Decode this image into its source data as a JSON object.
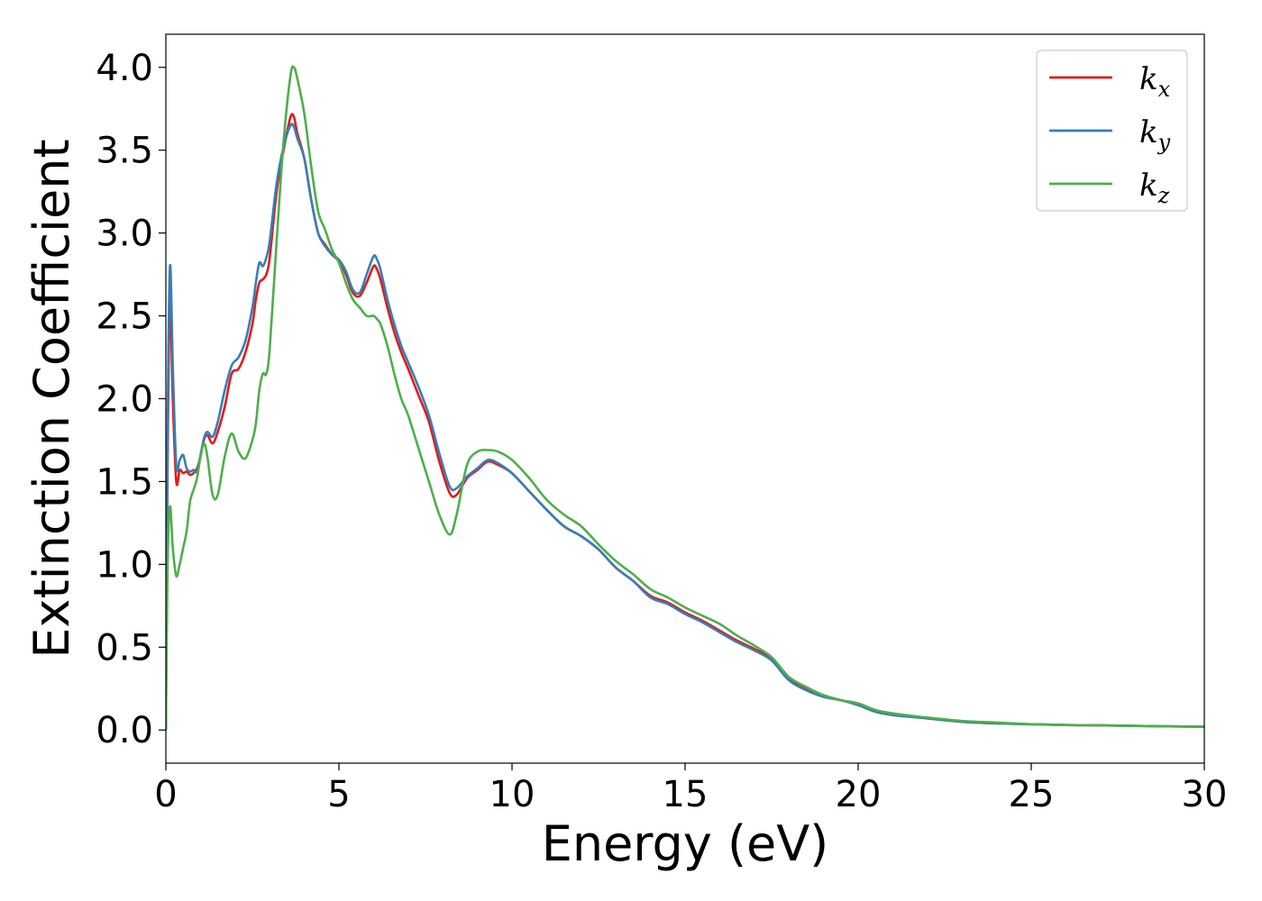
{
  "chart_data": {
    "type": "line",
    "title": "",
    "xlabel": "Energy (eV)",
    "ylabel": "Extinction Coefficient",
    "xlim": [
      0,
      30
    ],
    "ylim": [
      -0.2,
      4.2
    ],
    "xticks": [
      0,
      5,
      10,
      15,
      20,
      25,
      30
    ],
    "xtick_labels": [
      "0",
      "5",
      "10",
      "15",
      "20",
      "25",
      "30"
    ],
    "yticks": [
      0.0,
      0.5,
      1.0,
      1.5,
      2.0,
      2.5,
      3.0,
      3.5,
      4.0
    ],
    "ytick_labels": [
      "0.0",
      "0.5",
      "1.0",
      "1.5",
      "2.0",
      "2.5",
      "3.0",
      "3.5",
      "4.0"
    ],
    "grid": false,
    "legend_position": "top-right",
    "series": [
      {
        "name": "k",
        "subscript": "x",
        "color": "#e41a1c",
        "x": [
          0,
          0.05,
          0.12,
          0.2,
          0.3,
          0.4,
          0.5,
          0.6,
          0.7,
          0.8,
          0.9,
          1.0,
          1.1,
          1.2,
          1.35,
          1.5,
          1.7,
          1.9,
          2.1,
          2.3,
          2.5,
          2.6,
          2.7,
          2.8,
          2.9,
          3.0,
          3.2,
          3.4,
          3.6,
          3.7,
          3.8,
          4.0,
          4.2,
          4.4,
          4.6,
          4.8,
          5.0,
          5.2,
          5.4,
          5.6,
          5.8,
          6.0,
          6.1,
          6.2,
          6.4,
          6.6,
          6.8,
          7.0,
          7.3,
          7.6,
          7.9,
          8.2,
          8.4,
          8.7,
          9.0,
          9.3,
          9.6,
          10.0,
          10.5,
          11.0,
          11.5,
          12.0,
          12.5,
          13.0,
          13.5,
          14.0,
          14.5,
          15.0,
          15.5,
          16.0,
          16.5,
          17.0,
          17.5,
          18.0,
          18.5,
          19.0,
          19.5,
          20.0,
          20.5,
          21.0,
          22.0,
          23.0,
          24.0,
          25.0,
          26.0,
          27.0,
          28.0,
          29.0,
          30.0
        ],
        "y": [
          0.0,
          1.6,
          2.6,
          2.0,
          1.5,
          1.57,
          1.55,
          1.56,
          1.54,
          1.55,
          1.58,
          1.65,
          1.75,
          1.78,
          1.73,
          1.8,
          1.95,
          2.15,
          2.18,
          2.28,
          2.45,
          2.6,
          2.7,
          2.72,
          2.75,
          2.85,
          3.25,
          3.5,
          3.7,
          3.7,
          3.6,
          3.45,
          3.2,
          3.0,
          2.93,
          2.87,
          2.83,
          2.75,
          2.64,
          2.62,
          2.7,
          2.8,
          2.78,
          2.72,
          2.55,
          2.4,
          2.28,
          2.18,
          2.02,
          1.86,
          1.62,
          1.43,
          1.42,
          1.52,
          1.57,
          1.62,
          1.6,
          1.55,
          1.44,
          1.33,
          1.23,
          1.17,
          1.09,
          0.98,
          0.9,
          0.81,
          0.77,
          0.71,
          0.66,
          0.6,
          0.54,
          0.49,
          0.43,
          0.31,
          0.25,
          0.21,
          0.18,
          0.16,
          0.12,
          0.1,
          0.07,
          0.05,
          0.04,
          0.035,
          0.03,
          0.028,
          0.025,
          0.022,
          0.02
        ]
      },
      {
        "name": "k",
        "subscript": "y",
        "color": "#377eb8",
        "x": [
          0,
          0.05,
          0.12,
          0.2,
          0.3,
          0.4,
          0.5,
          0.6,
          0.7,
          0.8,
          0.9,
          1.0,
          1.1,
          1.2,
          1.35,
          1.5,
          1.7,
          1.9,
          2.1,
          2.3,
          2.5,
          2.6,
          2.7,
          2.8,
          2.9,
          3.0,
          3.2,
          3.4,
          3.6,
          3.7,
          3.8,
          4.0,
          4.2,
          4.4,
          4.6,
          4.8,
          5.0,
          5.2,
          5.4,
          5.6,
          5.8,
          6.0,
          6.1,
          6.2,
          6.4,
          6.6,
          6.8,
          7.0,
          7.3,
          7.6,
          7.9,
          8.2,
          8.4,
          8.7,
          9.0,
          9.3,
          9.6,
          10.0,
          10.5,
          11.0,
          11.5,
          12.0,
          12.5,
          13.0,
          13.5,
          14.0,
          14.5,
          15.0,
          15.5,
          16.0,
          16.5,
          17.0,
          17.5,
          18.0,
          18.5,
          19.0,
          19.5,
          20.0,
          20.5,
          21.0,
          22.0,
          23.0,
          24.0,
          25.0,
          26.0,
          27.0,
          28.0,
          29.0,
          30.0
        ],
        "y": [
          0.0,
          1.8,
          2.8,
          2.2,
          1.6,
          1.63,
          1.66,
          1.58,
          1.56,
          1.57,
          1.56,
          1.66,
          1.76,
          1.8,
          1.77,
          1.86,
          2.05,
          2.2,
          2.25,
          2.35,
          2.55,
          2.7,
          2.82,
          2.8,
          2.85,
          2.95,
          3.3,
          3.52,
          3.65,
          3.64,
          3.57,
          3.45,
          3.2,
          3.0,
          2.92,
          2.87,
          2.84,
          2.77,
          2.66,
          2.64,
          2.75,
          2.86,
          2.84,
          2.78,
          2.6,
          2.45,
          2.32,
          2.22,
          2.07,
          1.9,
          1.67,
          1.47,
          1.46,
          1.53,
          1.58,
          1.63,
          1.61,
          1.55,
          1.44,
          1.33,
          1.23,
          1.17,
          1.09,
          0.98,
          0.9,
          0.8,
          0.76,
          0.7,
          0.65,
          0.59,
          0.53,
          0.48,
          0.42,
          0.3,
          0.24,
          0.2,
          0.18,
          0.15,
          0.11,
          0.09,
          0.07,
          0.05,
          0.04,
          0.035,
          0.03,
          0.028,
          0.025,
          0.022,
          0.02
        ]
      },
      {
        "name": "k",
        "subscript": "z",
        "color": "#4daf4a",
        "x": [
          0,
          0.05,
          0.12,
          0.2,
          0.3,
          0.4,
          0.5,
          0.6,
          0.7,
          0.8,
          0.9,
          1.0,
          1.1,
          1.2,
          1.35,
          1.5,
          1.7,
          1.9,
          2.1,
          2.3,
          2.5,
          2.6,
          2.7,
          2.8,
          2.9,
          3.0,
          3.2,
          3.4,
          3.6,
          3.7,
          3.8,
          4.0,
          4.2,
          4.4,
          4.6,
          4.8,
          5.0,
          5.2,
          5.4,
          5.6,
          5.8,
          6.0,
          6.1,
          6.2,
          6.4,
          6.6,
          6.8,
          7.0,
          7.3,
          7.6,
          7.9,
          8.2,
          8.4,
          8.7,
          9.0,
          9.3,
          9.6,
          10.0,
          10.5,
          11.0,
          11.5,
          12.0,
          12.5,
          13.0,
          13.5,
          14.0,
          14.5,
          15.0,
          15.5,
          16.0,
          16.5,
          17.0,
          17.5,
          18.0,
          18.5,
          19.0,
          19.5,
          20.0,
          20.5,
          21.0,
          22.0,
          23.0,
          24.0,
          25.0,
          26.0,
          27.0,
          28.0,
          29.0,
          30.0
        ],
        "y": [
          0.0,
          1.0,
          1.35,
          1.1,
          0.93,
          1.0,
          1.1,
          1.2,
          1.38,
          1.45,
          1.52,
          1.65,
          1.73,
          1.65,
          1.42,
          1.42,
          1.65,
          1.79,
          1.68,
          1.64,
          1.75,
          1.85,
          2.05,
          2.15,
          2.15,
          2.3,
          2.95,
          3.55,
          3.95,
          4.0,
          3.93,
          3.72,
          3.4,
          3.13,
          3.02,
          2.9,
          2.82,
          2.7,
          2.6,
          2.55,
          2.5,
          2.5,
          2.48,
          2.45,
          2.32,
          2.15,
          2.0,
          1.9,
          1.7,
          1.5,
          1.3,
          1.18,
          1.3,
          1.6,
          1.68,
          1.69,
          1.68,
          1.63,
          1.52,
          1.39,
          1.3,
          1.23,
          1.12,
          1.02,
          0.94,
          0.85,
          0.8,
          0.74,
          0.69,
          0.64,
          0.57,
          0.51,
          0.44,
          0.32,
          0.26,
          0.21,
          0.18,
          0.16,
          0.12,
          0.1,
          0.075,
          0.055,
          0.045,
          0.035,
          0.03,
          0.028,
          0.025,
          0.022,
          0.02
        ]
      }
    ]
  }
}
